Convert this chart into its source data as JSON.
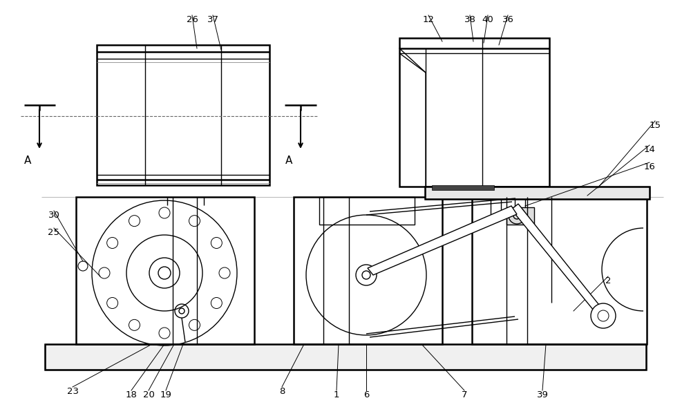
{
  "bg_color": "#ffffff",
  "lc": "#000000",
  "lw": 1.0,
  "tlw": 1.8,
  "fig_w": 10.0,
  "fig_h": 6.02,
  "dpi": 100
}
